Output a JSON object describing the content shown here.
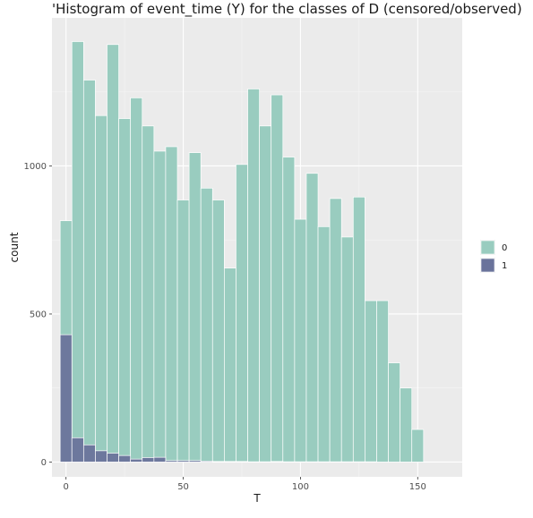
{
  "chart_data": {
    "type": "bar",
    "subtype": "histogram",
    "title": "'Histogram of event_time (Y) for the classes of D (censored/observed)",
    "xlabel": "T",
    "ylabel": "count",
    "xlim": [
      -6,
      169
    ],
    "ylim": [
      -50,
      1500
    ],
    "x_ticks": [
      "0",
      "50",
      "100",
      "150"
    ],
    "y_ticks": [
      "0",
      "500",
      "1000"
    ],
    "bin_width": 5,
    "bins_x": [
      0,
      5,
      10,
      15,
      20,
      25,
      30,
      35,
      40,
      45,
      50,
      55,
      60,
      65,
      70,
      75,
      80,
      85,
      90,
      95,
      100,
      105,
      110,
      115,
      120,
      125,
      130,
      135,
      140,
      145,
      150,
      155
    ],
    "series": [
      {
        "name": "0",
        "color": "#99ccbf",
        "values": [
          815,
          1420,
          1290,
          1170,
          1410,
          1160,
          1230,
          1135,
          1050,
          1065,
          885,
          1045,
          925,
          885,
          655,
          1005,
          1260,
          1135,
          1240,
          1030,
          820,
          975,
          795,
          890,
          760,
          895,
          545,
          545,
          335,
          250,
          110,
          0
        ]
      },
      {
        "name": "1",
        "color": "#6a739b",
        "values": [
          430,
          82,
          58,
          38,
          30,
          22,
          10,
          15,
          16,
          5,
          5,
          5,
          3,
          2,
          2,
          2,
          1,
          1,
          2,
          1,
          1,
          1,
          1,
          1,
          1,
          1,
          1,
          0,
          0,
          0,
          0,
          0
        ]
      }
    ],
    "grid": true,
    "legend_position": "right",
    "legend_entries": [
      "0",
      "1"
    ]
  }
}
